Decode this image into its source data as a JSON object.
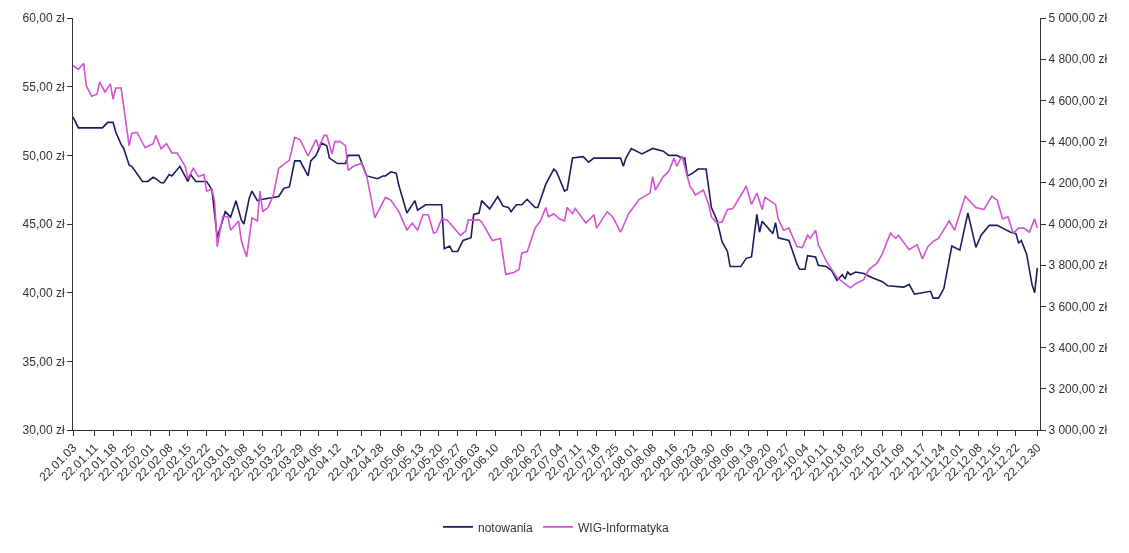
{
  "chart_data": {
    "type": "line",
    "legend": "bottom",
    "xlim": [
      "--01-03",
      "--12-31"
    ],
    "xticks": [
      {
        "value": "--01-03",
        "label": "22.01.03"
      },
      {
        "value": "--01-11",
        "label": "22.01.11"
      },
      {
        "value": "--01-18",
        "label": "22.01.18"
      },
      {
        "value": "--01-25",
        "label": "22.01.25"
      },
      {
        "value": "--02-01",
        "label": "22.02.01"
      },
      {
        "value": "--02-08",
        "label": "22.02.08"
      },
      {
        "value": "--02-15",
        "label": "22.02.15"
      },
      {
        "value": "--02-22",
        "label": "22.02.22"
      },
      {
        "value": "--03-01",
        "label": "22.03.01"
      },
      {
        "value": "--03-08",
        "label": "22.03.08"
      },
      {
        "value": "--03-15",
        "label": "22.03.15"
      },
      {
        "value": "--03-22",
        "label": "22.03.22"
      },
      {
        "value": "--03-29",
        "label": "22.03.29"
      },
      {
        "value": "--04-05",
        "label": "22.04.05"
      },
      {
        "value": "--04-12",
        "label": "22.04.12"
      },
      {
        "value": "--04-21",
        "label": "22.04.21"
      },
      {
        "value": "--04-28",
        "label": "22.04.28"
      },
      {
        "value": "--05-06",
        "label": "22.05.06"
      },
      {
        "value": "--05-13",
        "label": "22.05.13"
      },
      {
        "value": "--05-20",
        "label": "22.05.20"
      },
      {
        "value": "--05-27",
        "label": "22.05.27"
      },
      {
        "value": "--06-03",
        "label": "22.06.03"
      },
      {
        "value": "--06-10",
        "label": "22.06.10"
      },
      {
        "value": "--06-20",
        "label": "22.06.20"
      },
      {
        "value": "--06-27",
        "label": "22.06.27"
      },
      {
        "value": "--07-04",
        "label": "22.07.04"
      },
      {
        "value": "--07-11",
        "label": "22.07.11"
      },
      {
        "value": "--07-18",
        "label": "22.07.18"
      },
      {
        "value": "--07-25",
        "label": "22.07.25"
      },
      {
        "value": "--08-01",
        "label": "22.08.01"
      },
      {
        "value": "--08-08",
        "label": "22.08.08"
      },
      {
        "value": "--08-16",
        "label": "22.08.16"
      },
      {
        "value": "--08-23",
        "label": "22.08.23"
      },
      {
        "value": "--08-30",
        "label": "22.08.30"
      },
      {
        "value": "--09-06",
        "label": "22.09.06"
      },
      {
        "value": "--09-13",
        "label": "22.09.13"
      },
      {
        "value": "--09-20",
        "label": "22.09.20"
      },
      {
        "value": "--09-27",
        "label": "22.09.27"
      },
      {
        "value": "--10-04",
        "label": "22.10.04"
      },
      {
        "value": "--10-11",
        "label": "22.10.11"
      },
      {
        "value": "--10-18",
        "label": "22.10.18"
      },
      {
        "value": "--10-25",
        "label": "22.10.25"
      },
      {
        "value": "--11-02",
        "label": "22.11.02"
      },
      {
        "value": "--11-09",
        "label": "22.11.09"
      },
      {
        "value": "--11-17",
        "label": "22.11.17"
      },
      {
        "value": "--11-24",
        "label": "22.11.24"
      },
      {
        "value": "--12-01",
        "label": "22.12.01"
      },
      {
        "value": "--12-08",
        "label": "22.12.08"
      },
      {
        "value": "--12-15",
        "label": "22.12.15"
      },
      {
        "value": "--12-22",
        "label": "22.12.22"
      },
      {
        "value": "--12-30",
        "label": "22.12.30"
      }
    ],
    "ylim": [
      30,
      60
    ],
    "yticks": [
      {
        "value": 30,
        "label": "30,00 zł"
      },
      {
        "value": 35,
        "label": "35,00 zł"
      },
      {
        "value": 40,
        "label": "40,00 zł"
      },
      {
        "value": 45,
        "label": "45,00 zł"
      },
      {
        "value": 50,
        "label": "50,00 zł"
      },
      {
        "value": 55,
        "label": "55,00 zł"
      },
      {
        "value": 60,
        "label": "60,00 zł"
      }
    ],
    "y2lim": [
      3000,
      5000
    ],
    "y2ticks": [
      {
        "value": 3000,
        "label": "3 000,00 zł"
      },
      {
        "value": 3200,
        "label": "3 200,00 zł"
      },
      {
        "value": 3400,
        "label": "3 400,00 zł"
      },
      {
        "value": 3600,
        "label": "3 600,00 zł"
      },
      {
        "value": 3800,
        "label": "3 800,00 zł"
      },
      {
        "value": 4000,
        "label": "4 000,00 zł"
      },
      {
        "value": 4200,
        "label": "4 200,00 zł"
      },
      {
        "value": 4400,
        "label": "4 400,00 zł"
      },
      {
        "value": 4600,
        "label": "4 600,00 zł"
      },
      {
        "value": 4800,
        "label": "4 800,00 zł"
      },
      {
        "value": 5000,
        "label": "5 000,00 zł"
      }
    ],
    "series": [
      {
        "name": "notowania",
        "color": "#1c1c5e",
        "x": [
          "--01-03",
          "--01-05",
          "--01-11",
          "--01-14",
          "--01-16",
          "--01-18",
          "--01-19",
          "--01-21",
          "--01-22",
          "--01-24",
          "--01-25",
          "--01-29",
          "--01-31",
          "--02-02",
          "--02-03",
          "--02-05",
          "--02-06",
          "--02-08",
          "--02-09",
          "--02-12",
          "--02-15",
          "--02-16",
          "--02-18",
          "--02-22",
          "--02-24",
          "--02-26",
          "--03-01",
          "--03-03",
          "--03-05",
          "--03-07",
          "--03-08",
          "--03-10",
          "--03-11",
          "--03-13",
          "--03-15",
          "--03-21",
          "--03-23",
          "--03-25",
          "--03-27",
          "--03-29",
          "--04-01",
          "--04-02",
          "--04-04",
          "--04-06",
          "--04-08",
          "--04-09",
          "--04-12",
          "--04-15",
          "--04-16",
          "--04-20",
          "--04-23",
          "--04-27",
          "--04-29",
          "--04-30",
          "--05-02",
          "--05-04",
          "--05-05",
          "--05-08",
          "--05-11",
          "--05-12",
          "--05-15",
          "--05-21",
          "--05-22",
          "--05-24",
          "--05-25",
          "--05-27",
          "--05-29",
          "--06-01",
          "--06-02",
          "--06-04",
          "--06-05",
          "--06-08",
          "--06-11",
          "--06-13",
          "--06-15",
          "--06-16",
          "--06-18",
          "--06-20",
          "--06-22",
          "--06-25",
          "--06-26",
          "--06-29",
          "--07-02",
          "--07-03",
          "--07-06",
          "--07-07",
          "--07-09",
          "--07-13",
          "--07-15",
          "--07-17",
          "--07-27",
          "--07-28",
          "--07-29",
          "--07-31",
          "--08-04",
          "--08-08",
          "--08-12",
          "--08-14",
          "--08-17",
          "--08-19",
          "--08-20",
          "--08-21",
          "--08-23",
          "--08-25",
          "--08-28",
          "--08-30",
          "--09-01",
          "--09-03",
          "--09-05",
          "--09-06",
          "--09-10",
          "--09-12",
          "--09-14",
          "--09-16",
          "--09-17",
          "--09-18",
          "--09-22",
          "--09-23",
          "--09-24",
          "--09-28",
          "--10-01",
          "--10-02",
          "--10-04",
          "--10-05",
          "--10-08",
          "--10-09",
          "--10-12",
          "--10-14",
          "--10-16",
          "--10-18",
          "--10-19",
          "--10-20",
          "--10-21",
          "--10-23",
          "--10-26",
          "--10-29",
          "--11-02",
          "--11-04",
          "--11-10",
          "--11-12",
          "--11-14",
          "--11-17",
          "--11-20",
          "--11-21",
          "--11-23",
          "--11-25",
          "--11-28",
          "--12-01",
          "--12-04",
          "--12-07",
          "--12-09",
          "--12-12",
          "--12-15",
          "--12-17",
          "--12-20",
          "--12-22",
          "--12-23",
          "--12-24",
          "--12-26",
          "--12-28",
          "--12-29",
          "--12-30"
        ],
        "values": [
          52.8,
          52.0,
          52.0,
          52.0,
          52.4,
          52.4,
          51.7,
          50.8,
          50.5,
          49.3,
          49.2,
          48.1,
          48.1,
          48.4,
          48.3,
          48.0,
          48.0,
          48.6,
          48.5,
          49.2,
          48.1,
          48.6,
          48.1,
          48.1,
          47.5,
          44.0,
          45.9,
          45.5,
          46.7,
          45.3,
          45.0,
          46.9,
          47.4,
          46.7,
          46.8,
          47.0,
          47.6,
          47.7,
          49.6,
          49.6,
          48.5,
          49.6,
          50.0,
          50.9,
          50.7,
          49.8,
          49.4,
          49.4,
          50.0,
          50.0,
          48.5,
          48.3,
          48.5,
          48.5,
          48.8,
          48.7,
          47.8,
          45.8,
          46.7,
          46.0,
          46.4,
          46.4,
          43.2,
          43.4,
          43.0,
          43.0,
          43.8,
          44.0,
          45.7,
          45.8,
          46.7,
          46.1,
          47.0,
          46.3,
          46.2,
          45.9,
          46.4,
          46.4,
          46.8,
          46.2,
          46.2,
          47.9,
          49.0,
          48.8,
          47.4,
          47.5,
          49.8,
          49.9,
          49.5,
          49.8,
          49.8,
          49.2,
          49.8,
          50.5,
          50.1,
          50.5,
          50.3,
          50.0,
          50.0,
          49.8,
          49.8,
          48.5,
          48.7,
          49.0,
          49.0,
          46.2,
          45.3,
          43.7,
          43.0,
          41.9,
          41.9,
          42.5,
          42.6,
          45.7,
          44.4,
          45.2,
          44.3,
          45.1,
          44.0,
          43.8,
          42.1,
          41.7,
          41.7,
          42.7,
          42.6,
          42.0,
          41.9,
          41.6,
          40.9,
          41.3,
          41.0,
          41.5,
          41.3,
          41.5,
          41.4,
          41.1,
          40.8,
          40.5,
          40.4,
          40.6,
          39.9,
          40.0,
          40.1,
          39.6,
          39.6,
          40.3,
          43.4,
          43.1,
          45.8,
          43.3,
          44.2,
          44.9,
          44.9,
          44.7,
          44.4,
          44.3,
          43.6,
          43.8,
          42.8,
          40.6,
          40.0,
          41.8
        ]
      },
      {
        "name": "WIG-Informatyka",
        "color": "#d452d4",
        "axis": "y2",
        "x": [
          "--01-03",
          "--01-05",
          "--01-07",
          "--01-08",
          "--01-10",
          "--01-12",
          "--01-13",
          "--01-15",
          "--01-17",
          "--01-18",
          "--01-19",
          "--01-21",
          "--01-22",
          "--01-24",
          "--01-25",
          "--01-27",
          "--01-30",
          "--02-02",
          "--02-03",
          "--02-05",
          "--02-07",
          "--02-09",
          "--02-11",
          "--02-14",
          "--02-15",
          "--02-17",
          "--02-19",
          "--02-21",
          "--02-22",
          "--02-24",
          "--02-25",
          "--02-26",
          "--02-28",
          "--03-02",
          "--03-03",
          "--03-06",
          "--03-07",
          "--03-09",
          "--03-11",
          "--03-13",
          "--03-14",
          "--03-15",
          "--03-17",
          "--03-19",
          "--03-21",
          "--03-25",
          "--03-27",
          "--03-29",
          "--04-01",
          "--04-04",
          "--04-05",
          "--04-07",
          "--04-08",
          "--04-10",
          "--04-11",
          "--04-13",
          "--04-15",
          "--04-16",
          "--04-18",
          "--04-21",
          "--04-23",
          "--04-26",
          "--04-30",
          "--05-02",
          "--05-05",
          "--05-08",
          "--05-10",
          "--05-12",
          "--05-14",
          "--05-16",
          "--05-18",
          "--05-19",
          "--05-21",
          "--05-23",
          "--05-25",
          "--05-28",
          "--05-30",
          "--05-31",
          "--06-02",
          "--06-04",
          "--06-05",
          "--06-09",
          "--06-12",
          "--06-14",
          "--06-17",
          "--06-19",
          "--06-20",
          "--06-22",
          "--06-25",
          "--06-27",
          "--06-29",
          "--06-30",
          "--07-02",
          "--07-04",
          "--07-06",
          "--07-07",
          "--07-09",
          "--07-10",
          "--07-14",
          "--07-17",
          "--07-18",
          "--07-22",
          "--07-24",
          "--07-27",
          "--07-30",
          "--08-03",
          "--08-07",
          "--08-08",
          "--08-09",
          "--08-12",
          "--08-14",
          "--08-16",
          "--08-17",
          "--08-19",
          "--08-21",
          "--08-22",
          "--08-23",
          "--08-24",
          "--08-27",
          "--08-29",
          "--08-30",
          "--09-01",
          "--09-03",
          "--09-05",
          "--09-07",
          "--09-11",
          "--09-12",
          "--09-14",
          "--09-16",
          "--09-18",
          "--09-19",
          "--09-23",
          "--09-24",
          "--09-26",
          "--09-28",
          "--10-01",
          "--10-03",
          "--10-05",
          "--10-06",
          "--10-08",
          "--10-09",
          "--10-12",
          "--10-16",
          "--10-18",
          "--10-21",
          "--10-23",
          "--10-26",
          "--10-28",
          "--10-31",
          "--11-02",
          "--11-05",
          "--11-07",
          "--11-08",
          "--11-12",
          "--11-15",
          "--11-17",
          "--11-19",
          "--11-21",
          "--11-23",
          "--11-27",
          "--11-29",
          "--12-03",
          "--12-07",
          "--12-10",
          "--12-13",
          "--12-15",
          "--12-17",
          "--12-19",
          "--12-21",
          "--12-23",
          "--12-25",
          "--12-27",
          "--12-29",
          "--12-30"
        ],
        "values": [
          4770,
          4750,
          4780,
          4670,
          4620,
          4630,
          4690,
          4640,
          4680,
          4605,
          4660,
          4660,
          4570,
          4380,
          4440,
          4445,
          4370,
          4390,
          4430,
          4365,
          4390,
          4345,
          4345,
          4280,
          4220,
          4270,
          4230,
          4240,
          4160,
          4170,
          4110,
          3890,
          4035,
          4035,
          3970,
          4015,
          3920,
          3840,
          4030,
          4015,
          4160,
          4060,
          4080,
          4140,
          4270,
          4310,
          4420,
          4410,
          4330,
          4410,
          4370,
          4430,
          4430,
          4340,
          4400,
          4400,
          4380,
          4260,
          4280,
          4295,
          4230,
          4030,
          4130,
          4115,
          4060,
          3970,
          4005,
          3970,
          4045,
          4045,
          3955,
          3960,
          4025,
          4020,
          3990,
          3945,
          3965,
          4020,
          4020,
          4020,
          4010,
          3920,
          3930,
          3755,
          3765,
          3780,
          3860,
          3865,
          3980,
          4015,
          4080,
          4035,
          4050,
          4025,
          4015,
          4080,
          4050,
          4075,
          4005,
          4045,
          3980,
          4060,
          4035,
          3960,
          4050,
          4120,
          4150,
          4230,
          4165,
          4230,
          4255,
          4320,
          4280,
          4330,
          4230,
          4180,
          4165,
          4140,
          4165,
          4095,
          4035,
          4005,
          4010,
          4070,
          4075,
          4160,
          4185,
          4095,
          4150,
          4070,
          4130,
          4095,
          4025,
          3970,
          3980,
          3890,
          3885,
          3945,
          3930,
          3970,
          3900,
          3820,
          3740,
          3720,
          3690,
          3710,
          3730,
          3780,
          3810,
          3855,
          3955,
          3930,
          3945,
          3875,
          3900,
          3830,
          3890,
          3915,
          3930,
          4015,
          3970,
          4135,
          4080,
          4070,
          4135,
          4115,
          4025,
          4035,
          3955,
          3980,
          3980,
          3960,
          4025,
          3980
        ]
      }
    ]
  }
}
